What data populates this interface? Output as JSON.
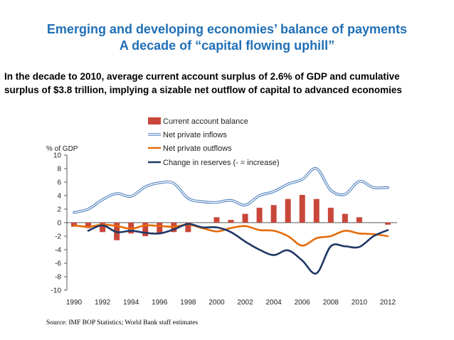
{
  "title_line1": "Emerging and developing economies’ balance of payments",
  "title_line2": "A decade of “capital flowing uphill”",
  "subtitle_line1": "In the decade to 2010, average current account surplus of 2.6% of GDP and cumulative",
  "subtitle_line2": "surplus of $3.8 trillion, implying a sizable net outflow of capital to advanced economies",
  "source": "Source: IMF BOP Statistics; World Bank staff estimates",
  "colors": {
    "bars": "#c8473a",
    "inflows": "#4f81bd",
    "outflows": "#e46c0a",
    "reserves": "#1f3864"
  },
  "chart_data": {
    "type": "bar+line",
    "ylabel": "% of GDP",
    "ylim": [
      -10,
      10
    ],
    "yticks": [
      10,
      8,
      6,
      4,
      2,
      0,
      -2,
      -4,
      -6,
      -8,
      -10
    ],
    "x_range": [
      1990,
      2012
    ],
    "xticks": [
      1990,
      1992,
      1994,
      1996,
      1998,
      2000,
      2002,
      2004,
      2006,
      2008,
      2010,
      2012
    ],
    "legend_position": "top-center",
    "bars": {
      "name": "Current account balance",
      "x": [
        1990,
        1991,
        1992,
        1993,
        1994,
        1995,
        1996,
        1997,
        1998,
        1999,
        2000,
        2001,
        2002,
        2003,
        2004,
        2005,
        2006,
        2007,
        2008,
        2009,
        2010,
        2011,
        2012
      ],
      "values": [
        -0.6,
        -0.8,
        -1.4,
        -2.6,
        -1.6,
        -2.0,
        -1.6,
        -1.4,
        -1.4,
        0.0,
        0.8,
        0.4,
        1.3,
        2.2,
        2.6,
        3.5,
        4.1,
        3.5,
        2.2,
        1.3,
        0.8,
        0.0,
        -0.3
      ]
    },
    "series": [
      {
        "name": "Net private inflows",
        "style": "double-line",
        "x": [
          1990,
          1991,
          1992,
          1993,
          1994,
          1995,
          1996,
          1997,
          1998,
          1999,
          2000,
          2001,
          2002,
          2003,
          2004,
          2005,
          2006,
          2007,
          2008,
          2009,
          2010,
          2011,
          2012
        ],
        "values": [
          1.5,
          2.0,
          3.4,
          4.3,
          3.9,
          5.3,
          5.9,
          5.8,
          3.6,
          3.1,
          3.0,
          3.3,
          2.6,
          4.0,
          4.6,
          5.7,
          6.4,
          8.0,
          4.8,
          4.2,
          6.1,
          5.2,
          5.2
        ]
      },
      {
        "name": "Net private outflows",
        "style": "line",
        "x": [
          1990,
          1991,
          1992,
          1993,
          1994,
          1995,
          1996,
          1997,
          1998,
          1999,
          2000,
          2001,
          2002,
          2003,
          2004,
          2005,
          2006,
          2007,
          2008,
          2009,
          2010,
          2011,
          2012
        ],
        "values": [
          -0.4,
          -0.6,
          -0.3,
          -0.5,
          -0.9,
          -0.4,
          -0.5,
          -0.6,
          -0.3,
          -0.8,
          -1.3,
          -0.8,
          -0.5,
          -1.1,
          -1.2,
          -2.0,
          -3.4,
          -2.3,
          -2.0,
          -1.2,
          -1.6,
          -1.7,
          -2.0
        ]
      },
      {
        "name": "Change in reserves (- = increase)",
        "style": "line",
        "x": [
          1991,
          1992,
          1993,
          1994,
          1995,
          1996,
          1997,
          1998,
          1999,
          2000,
          2001,
          2002,
          2003,
          2004,
          2005,
          2006,
          2007,
          2008,
          2009,
          2010,
          2011,
          2012
        ],
        "values": [
          -1.2,
          -0.4,
          -1.4,
          -1.2,
          -1.5,
          -1.6,
          -1.0,
          -0.2,
          -0.7,
          -0.7,
          -1.4,
          -2.8,
          -4.0,
          -4.8,
          -4.1,
          -5.6,
          -7.5,
          -3.5,
          -3.5,
          -3.6,
          -2.0,
          -1.1
        ]
      }
    ]
  }
}
